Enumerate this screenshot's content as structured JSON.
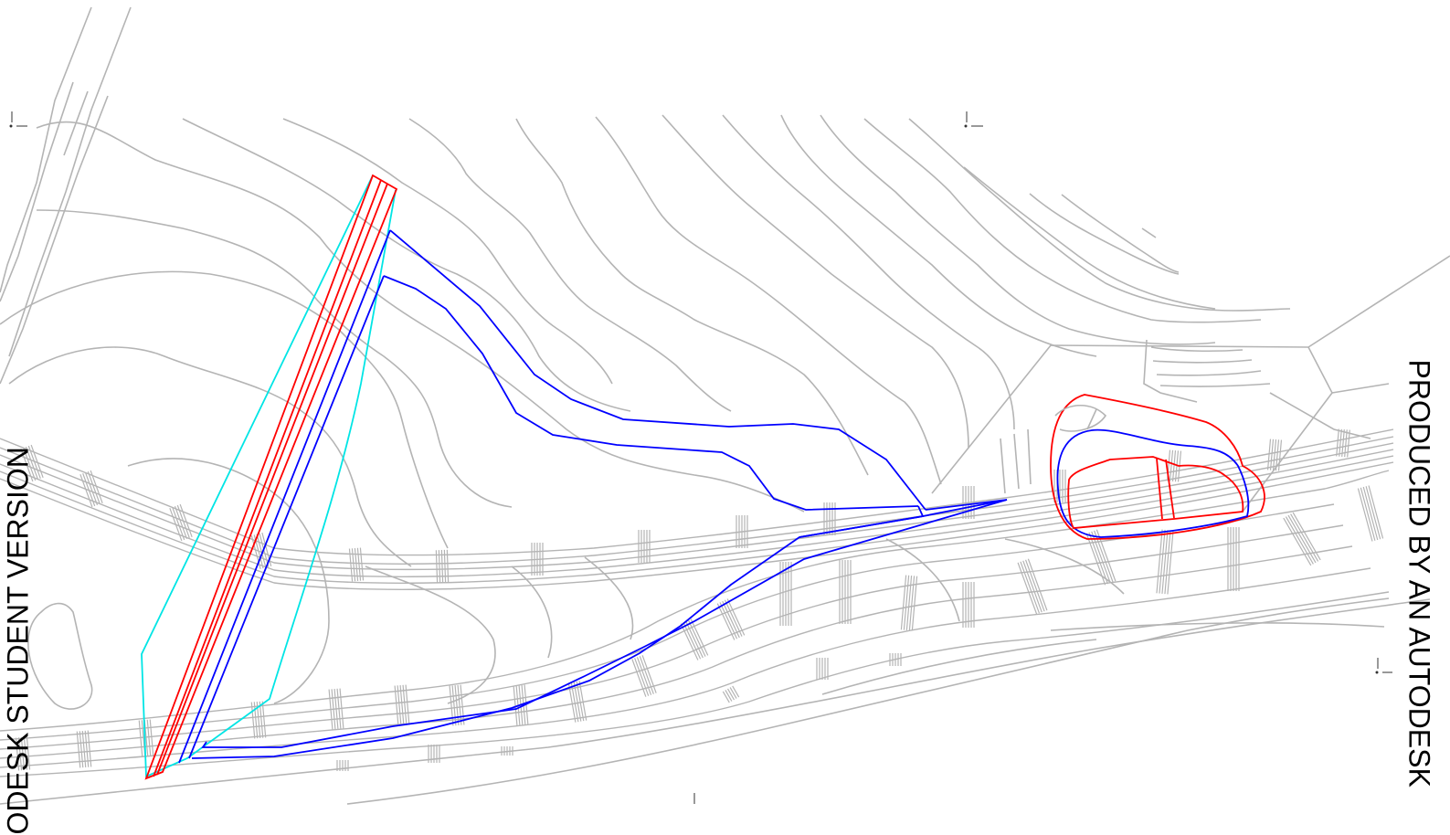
{
  "watermark": {
    "left": "ODESK STUDENT VERSION",
    "right": "PRODUCED BY AN AUTODESK"
  },
  "colors": {
    "background": "#ffffff",
    "terrain": "#b4b4b4",
    "red_outline": "#ff0000",
    "blue_outline": "#0000ff",
    "cyan_outline": "#00e5e5"
  },
  "icons": [
    "ucs-corner-marker"
  ]
}
